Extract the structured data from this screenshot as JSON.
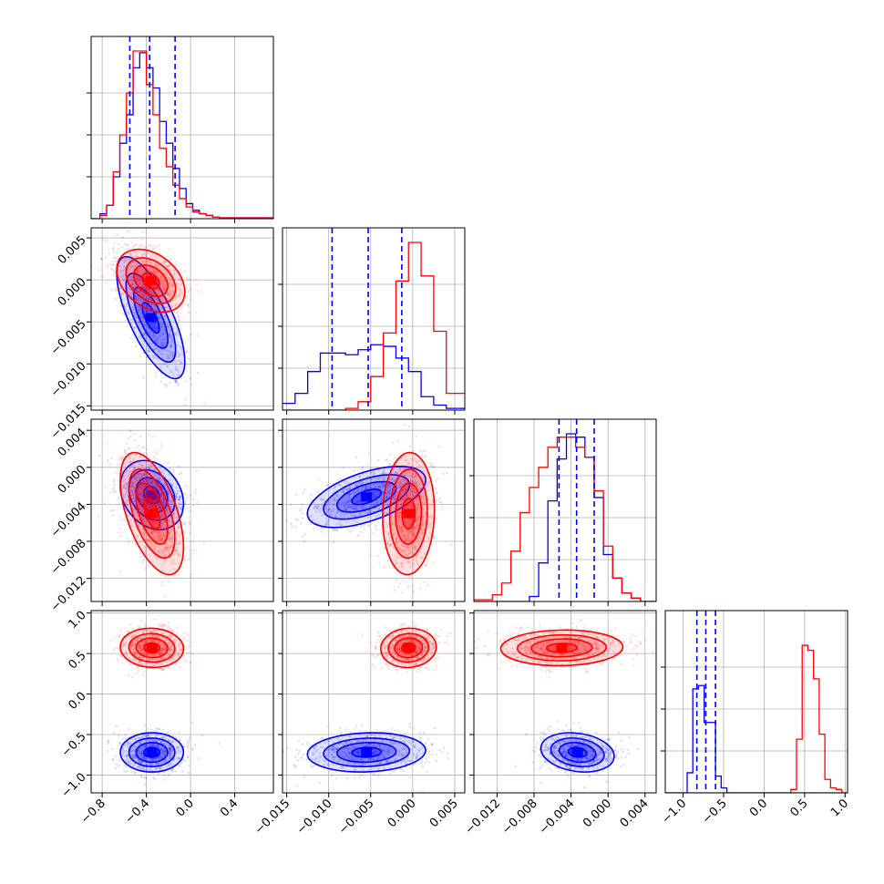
{
  "chart_data": {
    "type": "corner",
    "parameters": 4,
    "series": [
      {
        "name": "",
        "color": "#0000ff"
      },
      {
        "name": "",
        "color": "#ff0000"
      }
    ],
    "colors": {
      "series_a": "#0000ff",
      "series_b": "#ff0000",
      "quantile_line": "#0000ff",
      "grid": "#b0b0b0"
    },
    "grid": true,
    "quantiles_dashed": true,
    "axes": [
      {
        "range": [
          -0.9,
          0.75
        ],
        "ticks": [
          -0.8,
          -0.4,
          0.0,
          0.4
        ],
        "tick_labels": [
          "−0.8",
          "−0.4",
          "0.0",
          "0.4"
        ]
      },
      {
        "range": [
          -0.0155,
          0.0062
        ],
        "ticks": [
          -0.015,
          -0.01,
          -0.005,
          0.0,
          0.005
        ],
        "tick_labels": [
          "−0.015",
          "−0.010",
          "−0.005",
          "0.000",
          "0.005"
        ]
      },
      {
        "range": [
          -0.0145,
          0.0052
        ],
        "ticks": [
          -0.012,
          -0.008,
          -0.004,
          0.0,
          0.004
        ],
        "tick_labels": [
          "−0.012",
          "−0.008",
          "−0.004",
          "0.000",
          "0.004"
        ]
      },
      {
        "range": [
          -1.22,
          1.03
        ],
        "ticks": [
          -1.0,
          -0.5,
          0.0,
          0.5,
          1.0
        ],
        "tick_labels": [
          "−1.0",
          "−0.5",
          "0.0",
          "0.5",
          "1.0"
        ]
      }
    ],
    "histograms": [
      {
        "param": 0,
        "quantiles": [
          -0.55,
          -0.37,
          -0.14
        ],
        "max_count": 1.0,
        "blue": {
          "edges": [
            -0.9,
            -0.82,
            -0.76,
            -0.7,
            -0.64,
            -0.58,
            -0.52,
            -0.46,
            -0.4,
            -0.34,
            -0.28,
            -0.22,
            -0.16,
            -0.1,
            -0.04,
            0.02,
            0.08,
            0.14,
            0.2,
            0.26,
            0.75
          ],
          "counts": [
            0.0,
            0.03,
            0.08,
            0.25,
            0.45,
            0.62,
            0.9,
            0.99,
            0.9,
            0.78,
            0.58,
            0.45,
            0.3,
            0.18,
            0.09,
            0.05,
            0.03,
            0.02,
            0.01,
            0.005
          ]
        },
        "red": {
          "edges": [
            -0.9,
            -0.82,
            -0.76,
            -0.7,
            -0.64,
            -0.58,
            -0.52,
            -0.46,
            -0.4,
            -0.34,
            -0.28,
            -0.22,
            -0.16,
            -0.1,
            -0.04,
            0.02,
            0.08,
            0.14,
            0.2,
            0.26,
            0.75
          ],
          "counts": [
            0.0,
            0.02,
            0.08,
            0.28,
            0.5,
            0.75,
            1.0,
            1.0,
            0.8,
            0.62,
            0.42,
            0.31,
            0.2,
            0.12,
            0.07,
            0.04,
            0.03,
            0.02,
            0.01,
            0.005
          ]
        }
      },
      {
        "param": 1,
        "quantiles": [
          -0.0096,
          -0.0053,
          -0.0013
        ],
        "max_count": 1.0,
        "blue": {
          "edges": [
            -0.0155,
            -0.014,
            -0.0125,
            -0.011,
            -0.0095,
            -0.008,
            -0.0065,
            -0.005,
            -0.0035,
            -0.002,
            -0.0005,
            0.001,
            0.0025,
            0.004,
            0.0062
          ],
          "counts": [
            0.04,
            0.1,
            0.23,
            0.34,
            0.34,
            0.33,
            0.36,
            0.39,
            0.38,
            0.31,
            0.23,
            0.08,
            0.03,
            0.01
          ]
        },
        "red": {
          "edges": [
            -0.0155,
            -0.008,
            -0.0065,
            -0.005,
            -0.0035,
            -0.002,
            -0.0005,
            0.001,
            0.0025,
            0.004,
            0.0062
          ],
          "counts": [
            0.0,
            0.01,
            0.05,
            0.2,
            0.46,
            0.77,
            1.0,
            0.8,
            0.47,
            0.1
          ]
        }
      },
      {
        "param": 2,
        "quantiles": [
          -0.0053,
          -0.0034,
          -0.0015
        ],
        "max_count": 1.0,
        "blue": {
          "edges": [
            -0.0145,
            -0.0085,
            -0.0075,
            -0.0065,
            -0.0055,
            -0.0045,
            -0.0035,
            -0.0025,
            -0.0015,
            -0.0005,
            0.0005,
            0.0015,
            0.0025,
            0.0035,
            0.0052
          ],
          "counts": [
            0.0,
            0.03,
            0.23,
            0.6,
            0.85,
            1.0,
            0.98,
            0.86,
            0.62,
            0.28,
            0.14,
            0.05,
            0.02,
            0.0
          ]
        },
        "red": {
          "edges": [
            -0.0145,
            -0.0125,
            -0.0115,
            -0.0105,
            -0.0095,
            -0.0085,
            -0.0075,
            -0.0065,
            -0.0055,
            -0.0045,
            -0.0035,
            -0.0025,
            -0.0015,
            -0.0005,
            0.0005,
            0.0015,
            0.0025,
            0.0035,
            0.0052
          ],
          "counts": [
            0.01,
            0.04,
            0.11,
            0.3,
            0.53,
            0.68,
            0.8,
            0.92,
            0.98,
            0.98,
            0.92,
            0.86,
            0.66,
            0.33,
            0.14,
            0.05,
            0.02,
            0.0
          ]
        }
      },
      {
        "param": 3,
        "quantiles": [
          -0.83,
          -0.72,
          -0.6
        ],
        "max_count": 1.0,
        "blue": {
          "edges": [
            -1.22,
            -0.95,
            -0.88,
            -0.81,
            -0.74,
            -0.67,
            -0.6,
            -0.53,
            -0.46,
            -0.39,
            1.03
          ],
          "counts": [
            0.0,
            0.12,
            0.62,
            0.64,
            0.42,
            0.42,
            0.1,
            0.03,
            0.0,
            0.0
          ]
        },
        "red": {
          "edges": [
            -1.22,
            0.33,
            0.4,
            0.47,
            0.54,
            0.61,
            0.68,
            0.75,
            0.82,
            0.89,
            0.96,
            1.03
          ],
          "counts": [
            0.0,
            0.02,
            0.32,
            0.88,
            0.85,
            0.68,
            0.35,
            0.08,
            0.03,
            0.02,
            0.0
          ]
        }
      }
    ],
    "pair_panels": [
      {
        "x": 0,
        "y": 1,
        "blue": {
          "cx": -0.36,
          "cy": -0.0045,
          "sx": 0.14,
          "sy": 0.0033,
          "rho": -0.72
        },
        "red": {
          "cx": -0.36,
          "cy": -0.0001,
          "sx": 0.14,
          "sy": 0.0017,
          "rho": -0.35
        }
      },
      {
        "x": 0,
        "y": 2,
        "blue": {
          "cx": -0.35,
          "cy": -0.003,
          "sx": 0.13,
          "sy": 0.0017,
          "rho": -0.25
        },
        "red": {
          "cx": -0.35,
          "cy": -0.005,
          "sx": 0.13,
          "sy": 0.003,
          "rho": -0.55
        }
      },
      {
        "x": 0,
        "y": 3,
        "blue": {
          "cx": -0.35,
          "cy": -0.72,
          "sx": 0.13,
          "sy": 0.11,
          "rho": 0.0
        },
        "red": {
          "cx": -0.35,
          "cy": 0.57,
          "sx": 0.13,
          "sy": 0.11,
          "rho": -0.05
        }
      },
      {
        "x": 1,
        "y": 2,
        "blue": {
          "cx": -0.0055,
          "cy": -0.0032,
          "sx": 0.0032,
          "sy": 0.0015,
          "rho": 0.55
        },
        "red": {
          "cx": -0.0005,
          "cy": -0.005,
          "sx": 0.0014,
          "sy": 0.003,
          "rho": 0.05
        }
      },
      {
        "x": 1,
        "y": 3,
        "blue": {
          "cx": -0.0055,
          "cy": -0.72,
          "sx": 0.0032,
          "sy": 0.11,
          "rho": 0.1
        },
        "red": {
          "cx": -0.0005,
          "cy": 0.57,
          "sx": 0.0015,
          "sy": 0.11,
          "rho": 0.05
        }
      },
      {
        "x": 2,
        "y": 3,
        "blue": {
          "cx": -0.0033,
          "cy": -0.72,
          "sx": 0.0018,
          "sy": 0.11,
          "rho": -0.2
        },
        "red": {
          "cx": -0.005,
          "cy": 0.57,
          "sx": 0.003,
          "sy": 0.1,
          "rho": 0.05
        }
      }
    ]
  }
}
